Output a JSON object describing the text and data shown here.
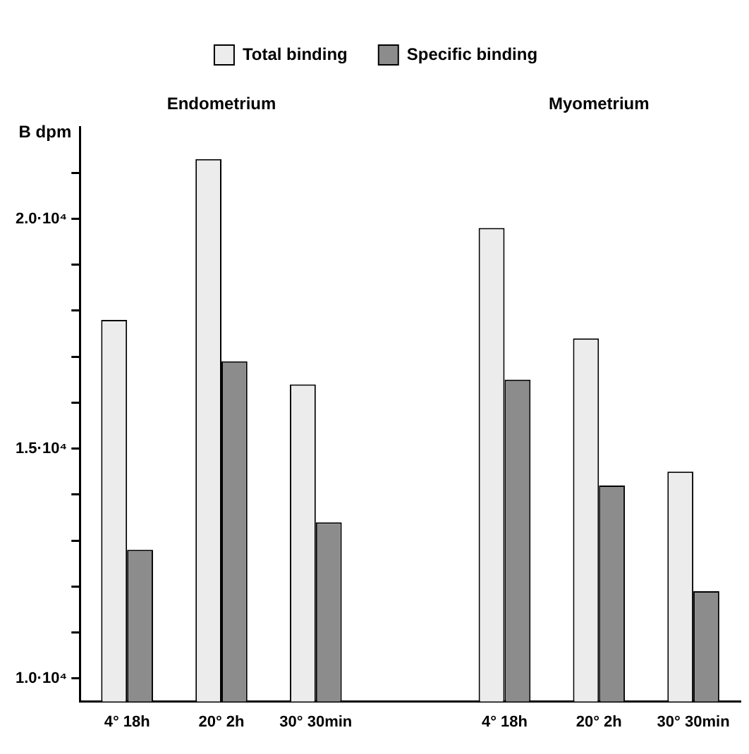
{
  "chart_data": {
    "type": "bar",
    "ylabel": "B dpm",
    "categories": [
      "4° 18h",
      "20° 2h",
      "30° 30min",
      null,
      "4° 18h",
      "20° 2h",
      "30° 30min"
    ],
    "series": [
      {
        "name": "Total binding",
        "color": "#ececec",
        "values": [
          17800,
          21300,
          16400,
          null,
          19800,
          17400,
          14500
        ]
      },
      {
        "name": "Specific binding",
        "color": "#8c8c8c",
        "values": [
          12800,
          16900,
          13400,
          null,
          16500,
          14200,
          11900
        ]
      }
    ],
    "annotations": [
      "Endometrium",
      "Myometrium"
    ],
    "ylim": [
      9500,
      22000
    ],
    "yticks": [
      {
        "value": 10000,
        "label": "1.0·10⁴"
      },
      {
        "value": 11000,
        "label": null
      },
      {
        "value": 12000,
        "label": null
      },
      {
        "value": 13000,
        "label": null
      },
      {
        "value": 14000,
        "label": null
      },
      {
        "value": 15000,
        "label": "1.5·10⁴"
      },
      {
        "value": 16000,
        "label": null
      },
      {
        "value": 17000,
        "label": null
      },
      {
        "value": 18000,
        "label": null
      },
      {
        "value": 19000,
        "label": null
      },
      {
        "value": 20000,
        "label": "2.0·10⁴"
      },
      {
        "value": 21000,
        "label": null
      }
    ],
    "grid": false,
    "legend": "top"
  }
}
